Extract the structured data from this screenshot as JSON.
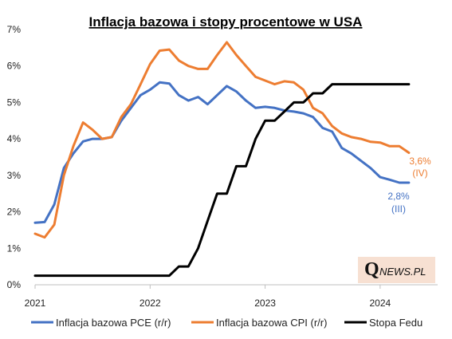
{
  "chart_data": {
    "type": "line",
    "title": "Inflacja bazowa i stopy procentowe w USA",
    "ylim": [
      0,
      7
    ],
    "yticks": [
      "0%",
      "1%",
      "2%",
      "3%",
      "4%",
      "5%",
      "6%",
      "7%"
    ],
    "xlim": [
      2021,
      2024.5
    ],
    "xticks": [
      "2021",
      "2022",
      "2023",
      "2024"
    ],
    "grid": false,
    "legend_position": "bottom",
    "series": [
      {
        "name": "Inflacja bazowa PCE (r/r)",
        "color": "#4472C4",
        "points": [
          [
            2021.0,
            1.7
          ],
          [
            2021.083,
            1.72
          ],
          [
            2021.167,
            2.2
          ],
          [
            2021.25,
            3.2
          ],
          [
            2021.333,
            3.6
          ],
          [
            2021.417,
            3.93
          ],
          [
            2021.5,
            4.0
          ],
          [
            2021.583,
            4.0
          ],
          [
            2021.667,
            4.05
          ],
          [
            2021.75,
            4.5
          ],
          [
            2021.833,
            4.85
          ],
          [
            2021.917,
            5.2
          ],
          [
            2022.0,
            5.35
          ],
          [
            2022.083,
            5.55
          ],
          [
            2022.167,
            5.52
          ],
          [
            2022.25,
            5.2
          ],
          [
            2022.333,
            5.05
          ],
          [
            2022.417,
            5.15
          ],
          [
            2022.5,
            4.95
          ],
          [
            2022.583,
            5.2
          ],
          [
            2022.667,
            5.45
          ],
          [
            2022.75,
            5.3
          ],
          [
            2022.833,
            5.05
          ],
          [
            2022.917,
            4.85
          ],
          [
            2023.0,
            4.88
          ],
          [
            2023.083,
            4.85
          ],
          [
            2023.167,
            4.78
          ],
          [
            2023.25,
            4.75
          ],
          [
            2023.333,
            4.7
          ],
          [
            2023.417,
            4.6
          ],
          [
            2023.5,
            4.3
          ],
          [
            2023.583,
            4.2
          ],
          [
            2023.667,
            3.75
          ],
          [
            2023.75,
            3.6
          ],
          [
            2023.833,
            3.4
          ],
          [
            2023.917,
            3.2
          ],
          [
            2024.0,
            2.95
          ],
          [
            2024.083,
            2.88
          ],
          [
            2024.167,
            2.8
          ],
          [
            2024.25,
            2.8
          ]
        ]
      },
      {
        "name": "Inflacja bazowa CPI (r/r)",
        "color": "#ED7D31",
        "points": [
          [
            2021.0,
            1.4
          ],
          [
            2021.083,
            1.3
          ],
          [
            2021.167,
            1.65
          ],
          [
            2021.25,
            3.0
          ],
          [
            2021.333,
            3.8
          ],
          [
            2021.417,
            4.45
          ],
          [
            2021.5,
            4.25
          ],
          [
            2021.583,
            4.0
          ],
          [
            2021.667,
            4.05
          ],
          [
            2021.75,
            4.6
          ],
          [
            2021.833,
            4.95
          ],
          [
            2021.917,
            5.5
          ],
          [
            2022.0,
            6.05
          ],
          [
            2022.083,
            6.42
          ],
          [
            2022.167,
            6.45
          ],
          [
            2022.25,
            6.15
          ],
          [
            2022.333,
            6.0
          ],
          [
            2022.417,
            5.92
          ],
          [
            2022.5,
            5.92
          ],
          [
            2022.583,
            6.3
          ],
          [
            2022.667,
            6.65
          ],
          [
            2022.75,
            6.3
          ],
          [
            2022.833,
            6.0
          ],
          [
            2022.917,
            5.7
          ],
          [
            2023.0,
            5.6
          ],
          [
            2023.083,
            5.5
          ],
          [
            2023.167,
            5.58
          ],
          [
            2023.25,
            5.55
          ],
          [
            2023.333,
            5.35
          ],
          [
            2023.417,
            4.85
          ],
          [
            2023.5,
            4.7
          ],
          [
            2023.583,
            4.35
          ],
          [
            2023.667,
            4.15
          ],
          [
            2023.75,
            4.05
          ],
          [
            2023.833,
            4.0
          ],
          [
            2023.917,
            3.92
          ],
          [
            2024.0,
            3.9
          ],
          [
            2024.083,
            3.8
          ],
          [
            2024.167,
            3.8
          ],
          [
            2024.25,
            3.62
          ]
        ]
      },
      {
        "name": "Stopa Fedu",
        "color": "#000000",
        "points": [
          [
            2021.0,
            0.25
          ],
          [
            2022.167,
            0.25
          ],
          [
            2022.25,
            0.5
          ],
          [
            2022.333,
            0.5
          ],
          [
            2022.417,
            1.0
          ],
          [
            2022.5,
            1.75
          ],
          [
            2022.583,
            2.5
          ],
          [
            2022.667,
            2.5
          ],
          [
            2022.75,
            3.25
          ],
          [
            2022.833,
            3.25
          ],
          [
            2022.917,
            4.0
          ],
          [
            2023.0,
            4.5
          ],
          [
            2023.083,
            4.5
          ],
          [
            2023.167,
            4.75
          ],
          [
            2023.25,
            5.0
          ],
          [
            2023.333,
            5.0
          ],
          [
            2023.417,
            5.25
          ],
          [
            2023.5,
            5.25
          ],
          [
            2023.583,
            5.5
          ],
          [
            2024.25,
            5.5
          ]
        ]
      }
    ],
    "annotations": [
      {
        "id": "cpi_value",
        "text": "3,6%",
        "color": "#ED7D31",
        "series": "Inflacja bazowa CPI (r/r)"
      },
      {
        "id": "cpi_period",
        "text": "(IV)",
        "color": "#ED7D31",
        "series": "Inflacja bazowa CPI (r/r)"
      },
      {
        "id": "pce_value",
        "text": "2,8%",
        "color": "#4472C4",
        "series": "Inflacja bazowa PCE (r/r)"
      },
      {
        "id": "pce_period",
        "text": "(III)",
        "color": "#4472C4",
        "series": "Inflacja bazowa PCE (r/r)"
      }
    ]
  },
  "branding": {
    "q": "Q",
    "rest": "NEWS.PL"
  }
}
